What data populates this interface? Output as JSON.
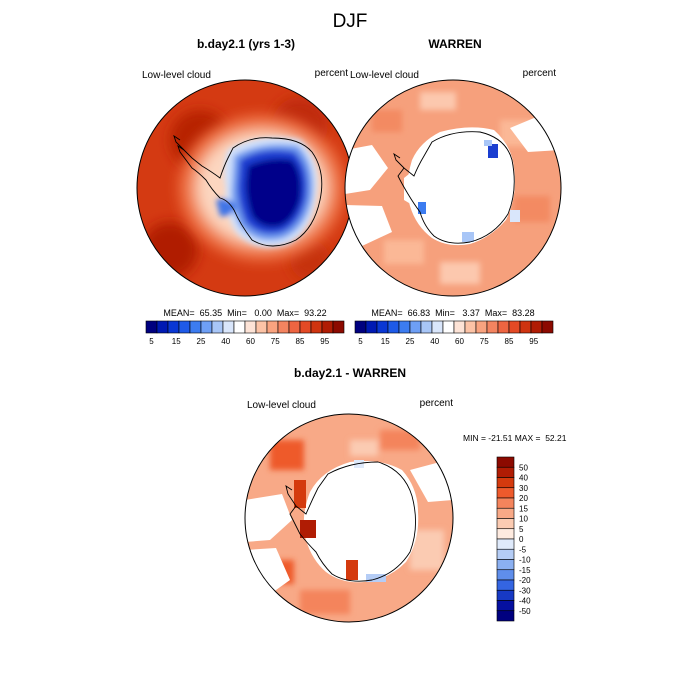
{
  "title": "DJF",
  "panels": [
    {
      "title": "b.day2.1 (yrs 1-3)",
      "left_label": "Low-level cloud",
      "right_label": "percent",
      "stats": "MEAN=  65.35  Min=   0.00  Max=  93.22"
    },
    {
      "title": "WARREN",
      "left_label": "Low-level cloud",
      "right_label": "percent",
      "stats": "MEAN=  66.83  Min=   3.37  Max=  83.28"
    },
    {
      "title": "b.day2.1 - WARREN",
      "left_label": "Low-level cloud",
      "right_label": "percent",
      "stats": "MIN = -21.51 MAX =  52.21"
    }
  ],
  "colorbar_h": {
    "colors": [
      "#00007f",
      "#0019b3",
      "#0a37d4",
      "#1e5ae8",
      "#3c7cf0",
      "#6e9ff5",
      "#a8c6f7",
      "#d9e6fb",
      "#ffffff",
      "#fde3d6",
      "#fcc3a6",
      "#f9a37f",
      "#f48460",
      "#ee6541",
      "#e44a25",
      "#cf3410",
      "#b01c04",
      "#8c0a00"
    ],
    "tick_labels": [
      "5",
      "15",
      "25",
      "40",
      "60",
      "75",
      "85",
      "95"
    ]
  },
  "colorbar_v": {
    "colors": [
      "#8c0a00",
      "#b01c04",
      "#d43a0e",
      "#ee5a2c",
      "#f4845c",
      "#f8a987",
      "#fbcbb2",
      "#feebe0",
      "#dfeafb",
      "#b5cdf6",
      "#8bb0f1",
      "#5f8eeb",
      "#3465e2",
      "#1739c4",
      "#0510a0",
      "#00007f"
    ],
    "tick_labels": [
      "50",
      "40",
      "30",
      "20",
      "15",
      "10",
      "5",
      "0",
      "-5",
      "-10",
      "-15",
      "-20",
      "-30",
      "-40",
      "-50"
    ]
  },
  "chart_data": [
    {
      "type": "heatmap",
      "title": "b.day2.1 (yrs 1-3)",
      "variable": "Low-level cloud",
      "units": "percent",
      "season": "DJF",
      "mean": 65.35,
      "min": 0.0,
      "max": 93.22,
      "contour_levels": [
        5,
        10,
        15,
        20,
        25,
        30,
        40,
        50,
        60,
        65,
        70,
        75,
        80,
        85,
        90,
        95
      ]
    },
    {
      "type": "heatmap",
      "title": "WARREN",
      "variable": "Low-level cloud",
      "units": "percent",
      "season": "DJF",
      "mean": 66.83,
      "min": 3.37,
      "max": 83.28,
      "contour_levels": [
        5,
        10,
        15,
        20,
        25,
        30,
        40,
        50,
        60,
        65,
        70,
        75,
        80,
        85,
        90,
        95
      ]
    },
    {
      "type": "heatmap",
      "title": "b.day2.1 - WARREN",
      "variable": "Low-level cloud",
      "units": "percent",
      "season": "DJF",
      "min": -21.51,
      "max": 52.21,
      "contour_levels": [
        -50,
        -40,
        -30,
        -20,
        -15,
        -10,
        -5,
        0,
        5,
        10,
        15,
        20,
        30,
        40,
        50
      ]
    }
  ]
}
